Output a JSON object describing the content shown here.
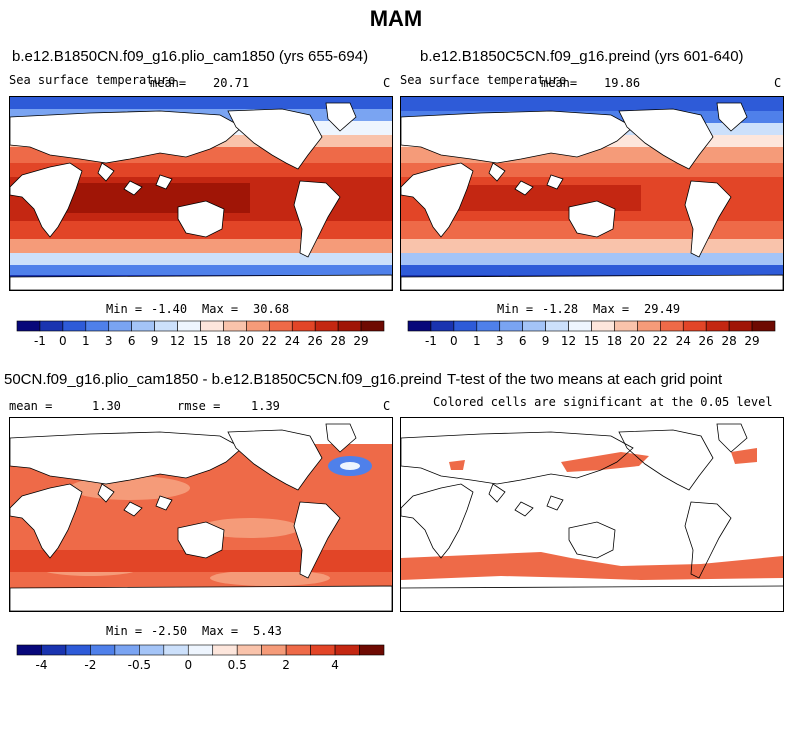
{
  "figure": {
    "title": "MAM"
  },
  "panels": [
    {
      "id": "plio",
      "title": "b.e12.B1850CN.f09_g16.plio_cam1850 (yrs 655-694)",
      "variable": "Sea surface temperature",
      "mean_label": "mean=",
      "mean_value": "20.71",
      "units": "C",
      "min_label": "Min =",
      "min_value": "-1.40",
      "max_label": "Max =",
      "max_value": "30.68"
    },
    {
      "id": "preind",
      "title": "b.e12.B1850C5CN.f09_g16.preind (yrs 601-640)",
      "variable": "Sea surface temperature",
      "mean_label": "mean=",
      "mean_value": "19.86",
      "units": "C",
      "min_label": "Min =",
      "min_value": "-1.28",
      "max_label": "Max =",
      "max_value": "29.49"
    },
    {
      "id": "diff",
      "title": "50CN.f09_g16.plio_cam1850 - b.e12.B1850C5CN.f09_g16.preind",
      "mean_label": "mean =",
      "mean_value": "1.30",
      "rmse_label": "rmse =",
      "rmse_value": "1.39",
      "units": "C",
      "min_label": "Min =",
      "min_value": "-2.50",
      "max_label": "Max =",
      "max_value": "5.43"
    },
    {
      "id": "ttest",
      "title": "T-test of the two means at each grid point",
      "subtitle": "Colored cells are significant at the 0.05 level"
    }
  ],
  "colorbars": {
    "sst": {
      "labels": [
        "-1",
        "0",
        "1",
        "3",
        "6",
        "9",
        "12",
        "15",
        "18",
        "20",
        "22",
        "24",
        "26",
        "28",
        "29"
      ],
      "colors": [
        "#08087a",
        "#1a34b0",
        "#2e5bd8",
        "#4f80ea",
        "#7aa4f2",
        "#a4c4f7",
        "#cce0fb",
        "#eef5fe",
        "#fde6dc",
        "#f9c3ab",
        "#f59b79",
        "#ee6a48",
        "#e24527",
        "#c42712",
        "#a01506",
        "#6e0a02"
      ]
    },
    "diff": {
      "labels": [
        "-4",
        "",
        "-2",
        "",
        "-0.5",
        "",
        "0",
        "",
        "0.5",
        "",
        "2",
        "",
        "4"
      ],
      "colors": [
        "#08087a",
        "#1a34b0",
        "#2e5bd8",
        "#4f80ea",
        "#7aa4f2",
        "#a4c4f7",
        "#cce0fb",
        "#eef5fe",
        "#fde6dc",
        "#f9c3ab",
        "#f59b79",
        "#ee6a48",
        "#e24527",
        "#c42712",
        "#6e0a02"
      ]
    }
  }
}
